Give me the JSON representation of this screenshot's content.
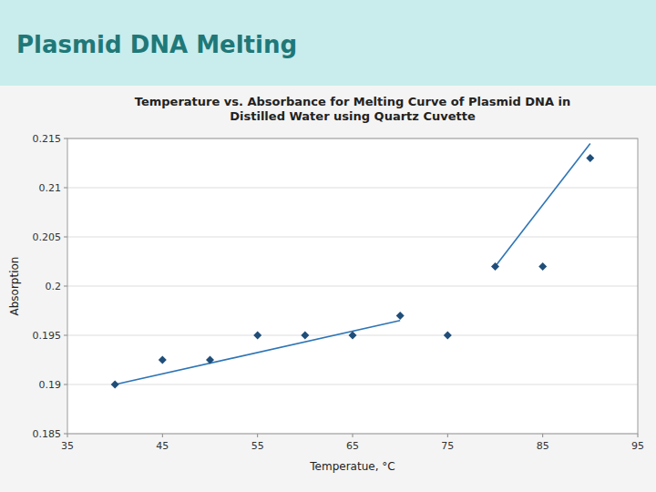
{
  "chart_data": {
    "type": "scatter",
    "title": "Temperature vs. Absorbance for Melting Curve of Plasmid DNA in\nDistilled Water using Quartz Cuvette",
    "annotations": [
      {
        "text": "Plasmid DNA Melting"
      }
    ],
    "xlabel": "Temperatue, °C",
    "ylabel": "Absorption",
    "xlim": [
      35,
      95
    ],
    "ylim": [
      0.185,
      0.215
    ],
    "xticks": [
      35,
      45,
      55,
      65,
      75,
      85,
      95
    ],
    "yticks": [
      0.185,
      0.19,
      0.195,
      0.2,
      0.205,
      0.21,
      0.215
    ],
    "grid": "y",
    "series": [
      {
        "type": "scatter",
        "marker": "diamond",
        "color": "#1f4e79",
        "x": [
          40,
          45,
          50,
          55,
          60,
          65,
          70,
          75,
          80,
          85,
          90
        ],
        "values": [
          0.19,
          0.1925,
          0.1925,
          0.195,
          0.195,
          0.195,
          0.197,
          0.195,
          0.202,
          0.202,
          0.213
        ]
      },
      {
        "type": "line",
        "color": "#2e75b6",
        "x": [
          40,
          70
        ],
        "values": [
          0.19,
          0.1965
        ]
      },
      {
        "type": "line",
        "color": "#2e75b6",
        "x": [
          80,
          90
        ],
        "values": [
          0.202,
          0.2145
        ]
      }
    ]
  }
}
